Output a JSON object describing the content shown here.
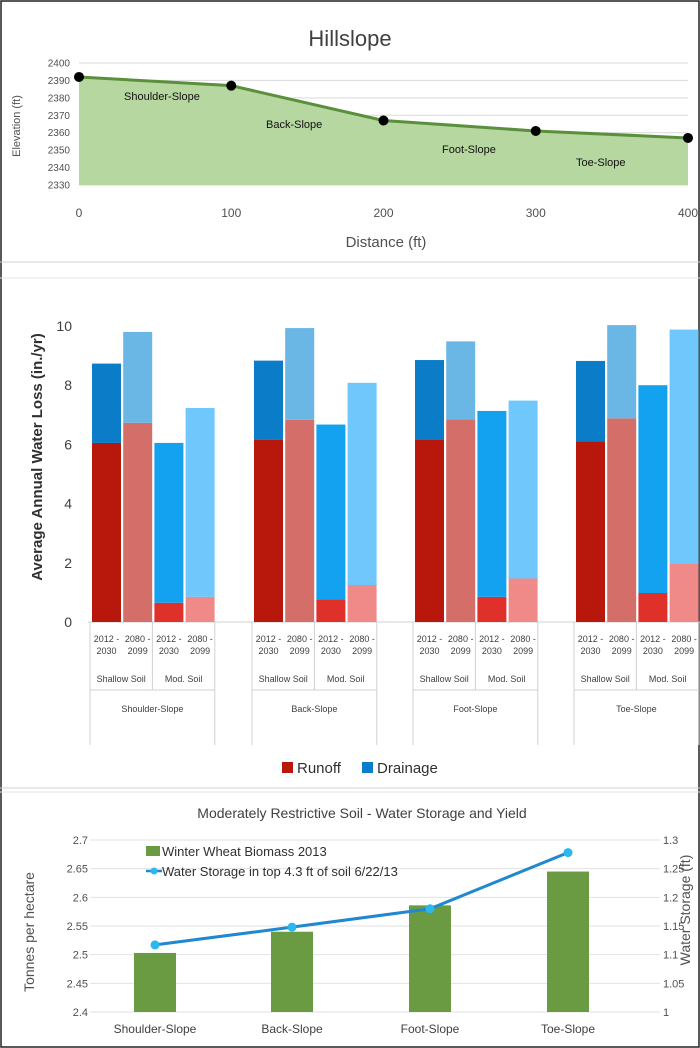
{
  "chart_data": [
    {
      "type": "area",
      "title": "Hillslope",
      "xlabel": "Distance (ft)",
      "ylabel": "Elevation (ft)",
      "xlim": [
        0,
        400
      ],
      "ylim": [
        2330,
        2400
      ],
      "x_ticks": [
        "0",
        "100",
        "200",
        "300",
        "400"
      ],
      "y_ticks": [
        "2330",
        "2340",
        "2350",
        "2360",
        "2370",
        "2380",
        "2390",
        "2400"
      ],
      "x": [
        0,
        100,
        200,
        300,
        400
      ],
      "y": [
        2392,
        2387,
        2367,
        2361,
        2357
      ],
      "segment_labels": [
        "Shoulder-Slope",
        "Back-Slope",
        "Foot-Slope",
        "Toe-Slope"
      ],
      "colors": {
        "fill": "#b6d7a0",
        "line": "#5a8f3c",
        "marker": "#000000"
      }
    },
    {
      "type": "bar",
      "stacked": true,
      "ylabel": "Average Annual Water Loss (in./yr)",
      "ylim": [
        0,
        10
      ],
      "y_ticks": [
        "0",
        "2",
        "4",
        "6",
        "8",
        "10"
      ],
      "period_labels": [
        [
          "2012 -",
          "2030"
        ],
        [
          "2080 -",
          "2099"
        ],
        [
          "2012 -",
          "2030"
        ],
        [
          "2080 -",
          "2099"
        ]
      ],
      "soil_labels": [
        "Shallow Soil",
        "Mod. Soil"
      ],
      "group_labels": [
        "Shoulder-Slope",
        "Back-Slope",
        "Foot-Slope",
        "Toe-Slope"
      ],
      "legend": [
        "Runoff",
        "Drainage"
      ],
      "legend_position": "bottom",
      "series": [
        {
          "name": "Runoff",
          "values": [
            [
              6.05,
              6.73,
              0.65,
              0.85
            ],
            [
              6.15,
              6.83,
              0.77,
              1.25
            ],
            [
              6.17,
              6.85,
              0.85,
              1.47
            ],
            [
              6.1,
              6.88,
              0.98,
              1.96
            ]
          ]
        },
        {
          "name": "Drainage",
          "values": [
            [
              2.68,
              3.07,
              5.4,
              6.38
            ],
            [
              2.68,
              3.1,
              5.9,
              6.83
            ],
            [
              2.68,
              2.63,
              6.28,
              6.01
            ],
            [
              2.72,
              3.15,
              7.02,
              7.92
            ]
          ]
        }
      ],
      "colors": {
        "runoff": [
          "#b8170b",
          "#d36f68",
          "#e0302a",
          "#f08a88"
        ],
        "drainage": [
          "#0a7cc8",
          "#6ab6e4",
          "#12a2f0",
          "#6fc7fc"
        ]
      }
    },
    {
      "type": "bar",
      "title": "Moderately Restrictive Soil - Water Storage and Yield",
      "categories": [
        "Shoulder-Slope",
        "Back-Slope",
        "Foot-Slope",
        "Toe-Slope"
      ],
      "ylabel": "Tonnes per hectare",
      "y2label": "Water Storage (ft)",
      "ylim": [
        2.4,
        2.7
      ],
      "y2lim": [
        1,
        1.3
      ],
      "y_ticks": [
        "2.4",
        "2.45",
        "2.5",
        "2.55",
        "2.6",
        "2.65",
        "2.7"
      ],
      "y2_ticks": [
        "1",
        "1.05",
        "1.1",
        "1.15",
        "1.2",
        "1.25",
        "1.3"
      ],
      "series": [
        {
          "name": "Winter Wheat Biomass 2013",
          "type": "bar",
          "axis": "left",
          "values": [
            2.503,
            2.54,
            2.586,
            2.645
          ]
        },
        {
          "name": "Water Storage in top 4.3 ft of soil 6/22/13",
          "type": "line",
          "axis": "right",
          "values": [
            1.117,
            1.148,
            1.18,
            1.278
          ]
        }
      ],
      "legend_position": "top-left",
      "colors": {
        "bar": "#6a9a42",
        "line": "#1f88d0",
        "marker": "#2ab8ef"
      }
    }
  ]
}
